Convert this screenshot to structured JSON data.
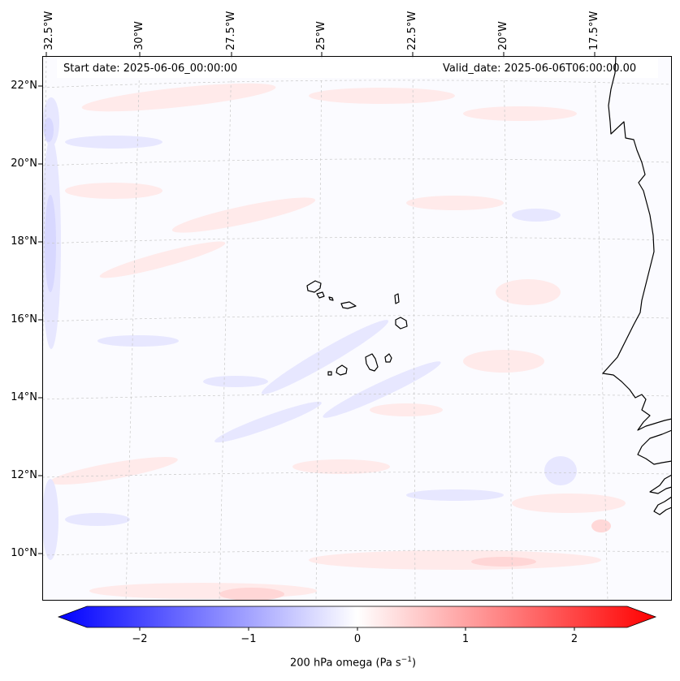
{
  "header": {
    "start_date": "Start date: 2025-06-06_00:00:00",
    "valid_date": "Valid_date: 2025-06-06T06:00:00.00"
  },
  "map": {
    "region": "Cape Verde / West African coast",
    "longitude_labels": [
      "32.5°W",
      "30°W",
      "27.5°W",
      "25°W",
      "22.5°W",
      "20°W",
      "17.5°W"
    ],
    "latitude_labels": [
      "22°N",
      "20°N",
      "18°N",
      "16°N",
      "14°N",
      "12°N",
      "10°N"
    ],
    "gridlines": true,
    "field": "200 hPa omega"
  },
  "colorbar": {
    "title": "200 hPa omega (Pa s",
    "title_sup": "−1",
    "title_close": ")",
    "ticks": [
      "−2",
      "−1",
      "0",
      "1",
      "2"
    ],
    "range": [
      -2.6,
      2.6
    ],
    "colormap": "bwr",
    "low_color": "#0000ff",
    "mid_color": "#ffffff",
    "high_color": "#ff0000"
  }
}
